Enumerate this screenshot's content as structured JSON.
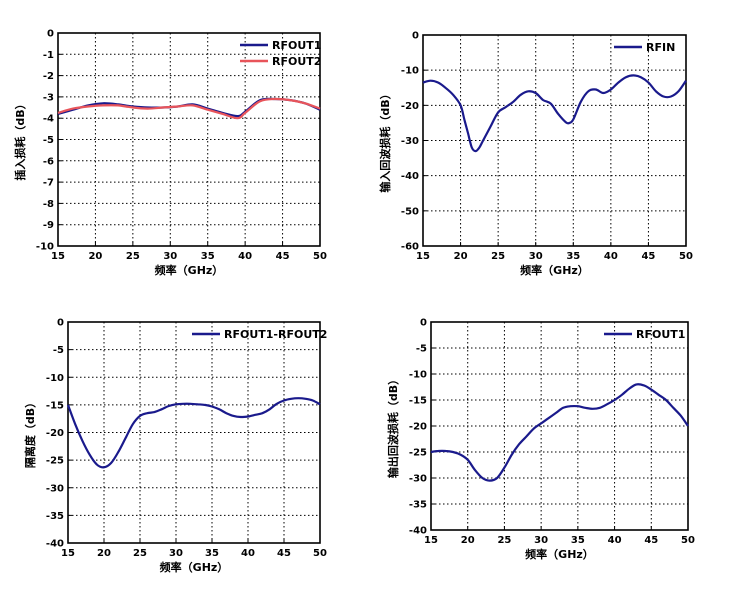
{
  "chart_data": [
    {
      "type": "line",
      "xlabel": "频率（GHz）",
      "ylabel": "插入损耗（dB）",
      "xlim": [
        15,
        50
      ],
      "ylim": [
        -10,
        0
      ],
      "xticks": [
        15,
        20,
        25,
        30,
        35,
        40,
        45,
        50
      ],
      "yticks": [
        0,
        -1,
        -2,
        -3,
        -4,
        -5,
        -6,
        -7,
        -8,
        -9,
        -10
      ],
      "grid": true,
      "legend": "top-right",
      "series": [
        {
          "name": "RFOUT1",
          "color": "#1a1a8c",
          "x": [
            15,
            17,
            19,
            21,
            23,
            25,
            27,
            29,
            31,
            33,
            35,
            37,
            39,
            40,
            42,
            44,
            46,
            48,
            50
          ],
          "y": [
            -3.8,
            -3.6,
            -3.4,
            -3.3,
            -3.35,
            -3.45,
            -3.5,
            -3.5,
            -3.45,
            -3.35,
            -3.55,
            -3.75,
            -3.9,
            -3.7,
            -3.15,
            -3.1,
            -3.15,
            -3.3,
            -3.6
          ]
        },
        {
          "name": "RFOUT2",
          "color": "#e8545a",
          "x": [
            15,
            17,
            19,
            21,
            23,
            25,
            27,
            29,
            31,
            33,
            35,
            37,
            39,
            40,
            42,
            44,
            46,
            48,
            50
          ],
          "y": [
            -3.75,
            -3.55,
            -3.45,
            -3.4,
            -3.4,
            -3.5,
            -3.55,
            -3.5,
            -3.45,
            -3.4,
            -3.6,
            -3.8,
            -4.0,
            -3.75,
            -3.2,
            -3.1,
            -3.15,
            -3.3,
            -3.55
          ]
        }
      ]
    },
    {
      "type": "line",
      "xlabel": "频率（GHz）",
      "ylabel": "输入回波损耗（dB）",
      "xlim": [
        15,
        50
      ],
      "ylim": [
        -60,
        0
      ],
      "xticks": [
        15,
        20,
        25,
        30,
        35,
        40,
        45,
        50
      ],
      "yticks": [
        0,
        -10,
        -20,
        -30,
        -40,
        -50,
        -60
      ],
      "grid": true,
      "legend": "top-right",
      "series": [
        {
          "name": "RFIN",
          "color": "#1a1a8c",
          "x": [
            15,
            16,
            17,
            18,
            19,
            20,
            20.5,
            21,
            21.5,
            22,
            22.5,
            23,
            24,
            25,
            26,
            27,
            28,
            29,
            30,
            31,
            32,
            33,
            34,
            34.5,
            35,
            36,
            37,
            38,
            39,
            40,
            41,
            42,
            43,
            44,
            45,
            46,
            47,
            48,
            49,
            50
          ],
          "y": [
            -13.5,
            -13,
            -13.5,
            -15,
            -17,
            -20,
            -24,
            -28,
            -32,
            -33,
            -32,
            -30,
            -26,
            -22,
            -20.5,
            -19,
            -17,
            -16,
            -16.5,
            -18.5,
            -19.5,
            -22.5,
            -24.8,
            -25,
            -24,
            -19,
            -16,
            -15.5,
            -16.5,
            -15.5,
            -13.5,
            -12,
            -11.5,
            -12,
            -13.5,
            -16,
            -17.5,
            -17.5,
            -16,
            -13
          ]
        }
      ]
    },
    {
      "type": "line",
      "xlabel": "频率（GHz）",
      "ylabel": "隔离度（dB）",
      "xlim": [
        15,
        50
      ],
      "ylim": [
        -40,
        0
      ],
      "xticks": [
        15,
        20,
        25,
        30,
        35,
        40,
        45,
        50
      ],
      "yticks": [
        0,
        -5,
        -10,
        -15,
        -20,
        -25,
        -30,
        -35,
        -40
      ],
      "grid": true,
      "legend": "top-right",
      "series": [
        {
          "name": "RFOUT1-RFOUT2",
          "color": "#1a1a8c",
          "x": [
            15,
            16,
            17,
            18,
            19,
            20,
            21,
            22,
            23,
            24,
            25,
            26,
            27,
            28,
            29,
            30,
            31,
            32,
            33,
            34,
            35,
            36,
            37,
            38,
            39,
            40,
            41,
            42,
            43,
            44,
            45,
            46,
            47,
            48,
            49,
            50
          ],
          "y": [
            -15,
            -18.5,
            -21.5,
            -24,
            -25.8,
            -26.3,
            -25.5,
            -23.5,
            -21,
            -18.5,
            -17,
            -16.5,
            -16.3,
            -15.8,
            -15.2,
            -14.9,
            -14.8,
            -14.8,
            -14.9,
            -15,
            -15.3,
            -15.8,
            -16.5,
            -17,
            -17.2,
            -17.1,
            -16.8,
            -16.5,
            -15.8,
            -14.8,
            -14.2,
            -13.9,
            -13.8,
            -13.9,
            -14.2,
            -14.9
          ]
        }
      ]
    },
    {
      "type": "line",
      "xlabel": "频率（GHz）",
      "ylabel": "输出回波损耗（dB）",
      "xlim": [
        15,
        50
      ],
      "ylim": [
        -40,
        0
      ],
      "xticks": [
        15,
        20,
        25,
        30,
        35,
        40,
        45,
        50
      ],
      "yticks": [
        0,
        -5,
        -10,
        -15,
        -20,
        -25,
        -30,
        -35,
        -40
      ],
      "grid": true,
      "legend": "top-right",
      "series": [
        {
          "name": "RFOUT1",
          "color": "#1a1a8c",
          "x": [
            15,
            16,
            17,
            18,
            19,
            20,
            21,
            22,
            23,
            24,
            25,
            26,
            27,
            28,
            29,
            30,
            31,
            32,
            33,
            34,
            35,
            36,
            37,
            38,
            39,
            40,
            41,
            42,
            43,
            44,
            45,
            46,
            47,
            48,
            49,
            50
          ],
          "y": [
            -25,
            -24.8,
            -24.8,
            -25,
            -25.5,
            -26.5,
            -28.5,
            -30,
            -30.5,
            -30,
            -28,
            -25.5,
            -23.5,
            -22,
            -20.5,
            -19.5,
            -18.5,
            -17.5,
            -16.5,
            -16.2,
            -16.2,
            -16.5,
            -16.7,
            -16.5,
            -15.8,
            -15,
            -14,
            -12.8,
            -12,
            -12.2,
            -13,
            -14,
            -15,
            -16.5,
            -18,
            -20
          ]
        }
      ]
    }
  ]
}
